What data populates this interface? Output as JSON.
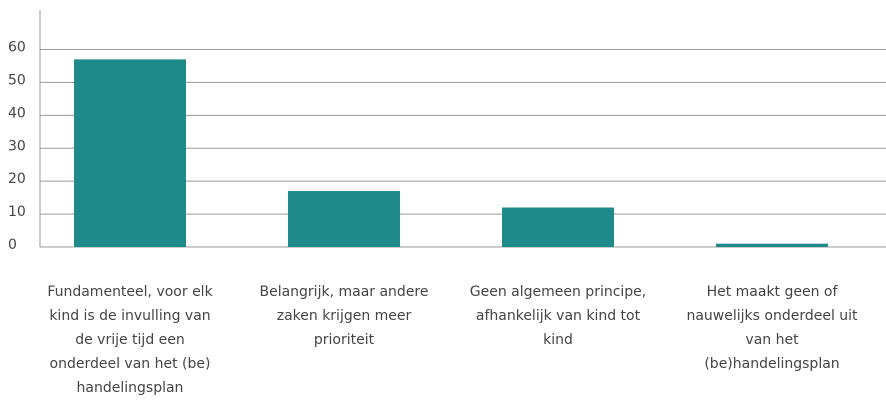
{
  "chart_data": {
    "type": "bar",
    "categories": [
      "Fundamenteel, voor elk kind is de invulling van de vrije tijd een onderdeel van het (be) handelingsplan",
      "Belangrijk, maar andere zaken krijgen meer prioriteit",
      "Geen algemeen principe, afhankelijk van kind tot kind",
      "Het maakt geen of nauwelijks onderdeel uit van het (be)handelingsplan"
    ],
    "values": [
      57,
      17,
      12,
      1
    ],
    "color": "#1f8a8a",
    "ylim": [
      0,
      72
    ],
    "yticks": [
      0,
      10,
      20,
      30,
      40,
      50,
      60
    ],
    "grid": true
  }
}
